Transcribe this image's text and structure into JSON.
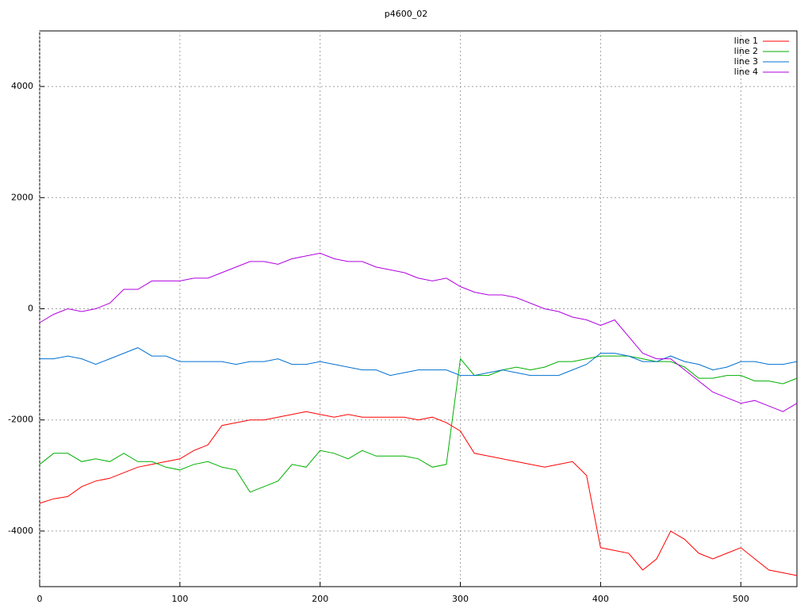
{
  "chart_data": {
    "type": "line",
    "title": "p4600_02",
    "x": [
      0,
      10,
      20,
      30,
      40,
      50,
      60,
      70,
      80,
      90,
      100,
      110,
      120,
      130,
      140,
      150,
      160,
      170,
      180,
      190,
      200,
      210,
      220,
      230,
      240,
      250,
      260,
      270,
      280,
      290,
      300,
      310,
      320,
      330,
      340,
      350,
      360,
      370,
      380,
      390,
      400,
      410,
      420,
      430,
      440,
      450,
      460,
      470,
      480,
      490,
      500,
      510,
      520,
      530,
      540
    ],
    "series": [
      {
        "name": "line 1",
        "color": "#ff0000",
        "values": [
          -3500,
          -3420,
          -3380,
          -3200,
          -3100,
          -3050,
          -2950,
          -2850,
          -2800,
          -2750,
          -2700,
          -2550,
          -2450,
          -2100,
          -2050,
          -2000,
          -2000,
          -1950,
          -1900,
          -1850,
          -1900,
          -1950,
          -1900,
          -1950,
          -1950,
          -1950,
          -1950,
          -2000,
          -1950,
          -2050,
          -2200,
          -2600,
          -2650,
          -2700,
          -2750,
          -2800,
          -2850,
          -2800,
          -2750,
          -3000,
          -4300,
          -4350,
          -4400,
          -4700,
          -4500,
          -4000,
          -4150,
          -4400,
          -4500,
          -4400,
          -4300,
          -4500,
          -4700,
          -4750,
          -4800
        ]
      },
      {
        "name": "line 2",
        "color": "#00b000",
        "values": [
          -2800,
          -2600,
          -2600,
          -2750,
          -2700,
          -2750,
          -2600,
          -2750,
          -2750,
          -2850,
          -2900,
          -2800,
          -2750,
          -2850,
          -2900,
          -3300,
          -3200,
          -3100,
          -2800,
          -2850,
          -2550,
          -2600,
          -2700,
          -2550,
          -2650,
          -2650,
          -2650,
          -2700,
          -2850,
          -2800,
          -900,
          -1200,
          -1200,
          -1100,
          -1050,
          -1100,
          -1050,
          -950,
          -950,
          -900,
          -850,
          -850,
          -850,
          -900,
          -950,
          -950,
          -1050,
          -1250,
          -1250,
          -1200,
          -1200,
          -1300,
          -1300,
          -1350,
          -1250
        ]
      },
      {
        "name": "line 3",
        "color": "#0070d0",
        "values": [
          -900,
          -900,
          -850,
          -900,
          -1000,
          -900,
          -800,
          -700,
          -850,
          -850,
          -950,
          -950,
          -950,
          -950,
          -1000,
          -950,
          -950,
          -900,
          -1000,
          -1000,
          -950,
          -1000,
          -1050,
          -1100,
          -1100,
          -1200,
          -1150,
          -1100,
          -1100,
          -1100,
          -1200,
          -1200,
          -1150,
          -1100,
          -1150,
          -1200,
          -1200,
          -1200,
          -1100,
          -1000,
          -800,
          -800,
          -850,
          -950,
          -950,
          -850,
          -950,
          -1000,
          -1100,
          -1050,
          -950,
          -950,
          -1000,
          -1000,
          -950
        ]
      },
      {
        "name": "line 4",
        "color": "#b000e0",
        "values": [
          -250,
          -100,
          0,
          -50,
          0,
          100,
          350,
          350,
          500,
          500,
          500,
          550,
          550,
          650,
          750,
          850,
          850,
          800,
          900,
          950,
          1000,
          900,
          850,
          850,
          750,
          700,
          650,
          550,
          500,
          550,
          400,
          300,
          250,
          250,
          200,
          100,
          0,
          -50,
          -150,
          -200,
          -300,
          -200,
          -500,
          -800,
          -900,
          -900,
          -1100,
          -1300,
          -1500,
          -1600,
          -1700,
          -1650,
          -1750,
          -1850,
          -1700
        ]
      }
    ],
    "xlim": [
      0,
      540
    ],
    "ylim": [
      -5000,
      5000
    ],
    "xticks": [
      0,
      100,
      200,
      300,
      400,
      500
    ],
    "yticks": [
      -4000,
      -2000,
      0,
      2000,
      4000
    ],
    "grid": true,
    "legend": "top-right"
  }
}
